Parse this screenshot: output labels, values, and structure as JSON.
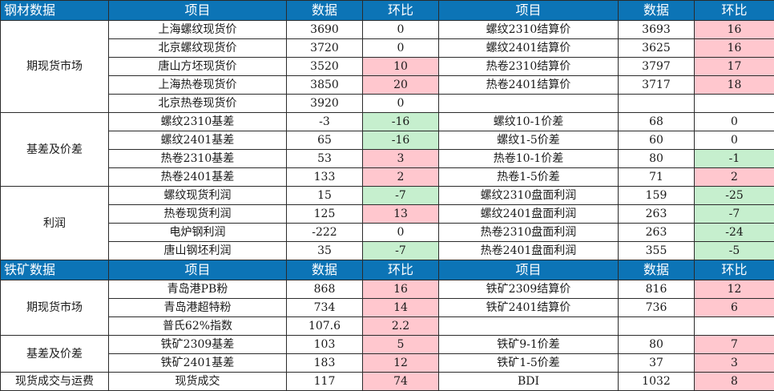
{
  "steel": {
    "header": [
      "钢材数据",
      "项目",
      "数据",
      "环比",
      "项目",
      "数据",
      "环比"
    ],
    "sections": [
      {
        "label": "期现货市场",
        "rows": [
          {
            "l_item": "上海螺纹现货价",
            "l_val": "3690",
            "l_chg": "0",
            "l_cls": "",
            "r_item": "螺纹2310结算价",
            "r_val": "3693",
            "r_chg": "16",
            "r_cls": "pos"
          },
          {
            "l_item": "北京螺纹现货价",
            "l_val": "3720",
            "l_chg": "0",
            "l_cls": "",
            "r_item": "螺纹2401结算价",
            "r_val": "3625",
            "r_chg": "16",
            "r_cls": "pos"
          },
          {
            "l_item": "唐山方坯现货价",
            "l_val": "3520",
            "l_chg": "10",
            "l_cls": "pos",
            "r_item": "热卷2310结算价",
            "r_val": "3797",
            "r_chg": "17",
            "r_cls": "pos"
          },
          {
            "l_item": "上海热卷现货价",
            "l_val": "3850",
            "l_chg": "20",
            "l_cls": "pos",
            "r_item": "热卷2401结算价",
            "r_val": "3717",
            "r_chg": "18",
            "r_cls": "pos"
          },
          {
            "l_item": "北京热卷现货价",
            "l_val": "3920",
            "l_chg": "0",
            "l_cls": "",
            "r_item": "",
            "r_val": "",
            "r_chg": "",
            "r_cls": ""
          }
        ]
      },
      {
        "label": "基差及价差",
        "rows": [
          {
            "l_item": "螺纹2310基差",
            "l_val": "-3",
            "l_val_cls": "red",
            "l_chg": "-16",
            "l_cls": "neg",
            "r_item": "螺纹10-1价差",
            "r_val": "68",
            "r_chg": "0",
            "r_cls": ""
          },
          {
            "l_item": "螺纹2401基差",
            "l_val": "65",
            "l_chg": "-16",
            "l_cls": "neg",
            "r_item": "螺纹1-5价差",
            "r_val": "60",
            "r_chg": "0",
            "r_cls": ""
          },
          {
            "l_item": "热卷2310基差",
            "l_val": "53",
            "l_chg": "3",
            "l_cls": "pos",
            "r_item": "热卷10-1价差",
            "r_val": "80",
            "r_chg": "-1",
            "r_cls": "neg"
          },
          {
            "l_item": "热卷2401基差",
            "l_val": "133",
            "l_chg": "2",
            "l_cls": "pos",
            "r_item": "热卷1-5价差",
            "r_val": "71",
            "r_chg": "2",
            "r_cls": "pos"
          }
        ]
      },
      {
        "label": "利润",
        "rows": [
          {
            "l_item": "螺纹现货利润",
            "l_val": "15",
            "l_chg": "-7",
            "l_cls": "neg",
            "r_item": "螺纹2310盘面利润",
            "r_val": "159",
            "r_chg": "-25",
            "r_cls": "neg"
          },
          {
            "l_item": "热卷现货利润",
            "l_val": "125",
            "l_chg": "13",
            "l_cls": "pos",
            "r_item": "螺纹2401盘面利润",
            "r_val": "263",
            "r_chg": "-7",
            "r_cls": "neg"
          },
          {
            "l_item": "电炉钢利润",
            "l_val": "-222",
            "l_val_cls": "red",
            "l_chg": "0",
            "l_cls": "",
            "r_item": "热卷2310盘面利润",
            "r_val": "263",
            "r_chg": "-24",
            "r_cls": "neg"
          },
          {
            "l_item": "唐山钢坯利润",
            "l_val": "35",
            "l_chg": "-7",
            "l_cls": "neg",
            "r_item": "热卷2401盘面利润",
            "r_val": "355",
            "r_chg": "-5",
            "r_cls": "neg"
          }
        ]
      }
    ]
  },
  "ore": {
    "header": [
      "铁矿数据",
      "项目",
      "数据",
      "环比",
      "项目",
      "数据",
      "环比"
    ],
    "sections": [
      {
        "label": "期现货市场",
        "rows": [
          {
            "l_item": "青岛港PB粉",
            "l_val": "868",
            "l_chg": "16",
            "l_cls": "pos",
            "r_item": "铁矿2309结算价",
            "r_val": "816",
            "r_chg": "12",
            "r_cls": "pos"
          },
          {
            "l_item": "青岛港超特粉",
            "l_val": "734",
            "l_chg": "14",
            "l_cls": "pos",
            "r_item": "铁矿2401结算价",
            "r_val": "736",
            "r_chg": "6",
            "r_cls": "pos"
          },
          {
            "l_item": "普氏62%指数",
            "l_val": "107.6",
            "l_chg": "2.2",
            "l_cls": "pos",
            "r_item": "",
            "r_val": "",
            "r_chg": "",
            "r_cls": ""
          }
        ]
      },
      {
        "label": "基差及价差",
        "rows": [
          {
            "l_item": "铁矿2309基差",
            "l_val": "103",
            "l_chg": "5",
            "l_cls": "pos",
            "r_item": "铁矿9-1价差",
            "r_val": "80",
            "r_chg": "7",
            "r_cls": "pos"
          },
          {
            "l_item": "铁矿2401基差",
            "l_val": "183",
            "l_chg": "12",
            "l_cls": "pos",
            "r_item": "铁矿1-5价差",
            "r_val": "37",
            "r_chg": "3",
            "r_cls": "pos"
          }
        ]
      },
      {
        "label": "现货成交与运费",
        "rows": [
          {
            "l_item": "现货成交",
            "l_val": "117",
            "l_chg": "74",
            "l_cls": "pos",
            "r_item": "BDI",
            "r_val": "1032",
            "r_chg": "8",
            "r_cls": "pos"
          }
        ]
      }
    ]
  },
  "colors": {
    "header_bg": "#0c74b6",
    "increase_bg": "#ffc7ce",
    "decrease_bg": "#c6efce",
    "negative_text": "#c00000"
  }
}
